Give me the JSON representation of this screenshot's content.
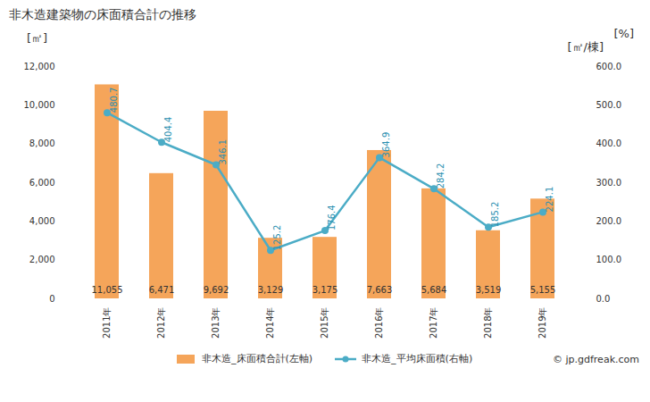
{
  "chart_data": {
    "type": "bar",
    "title": "非木造建築物の床面積合計の推移",
    "y_label": "[㎡]",
    "y2_label": "[㎡/棟]",
    "annotations": [
      "[%]"
    ],
    "caption": "© jp.gdfreak.com",
    "categories": [
      "2011年",
      "2012年",
      "2013年",
      "2014年",
      "2015年",
      "2016年",
      "2017年",
      "2018年",
      "2019年"
    ],
    "series": [
      {
        "name": "非木造_床面積合計(左軸)",
        "type": "bar",
        "color": "#f5a55a",
        "values": [
          11055,
          6471,
          9692,
          3129,
          3175,
          7663,
          5684,
          3519,
          5155
        ],
        "value_labels": [
          "11,055",
          "6,471",
          "9,692",
          "3,129",
          "3,175",
          "7,663",
          "5,684",
          "3,519",
          "5,155"
        ]
      },
      {
        "name": "非木造_平均床面積(右軸)",
        "type": "line",
        "axis": "y2",
        "color": "#4bacc6",
        "marker": "circle",
        "values": [
          480.7,
          404.4,
          346.1,
          125.2,
          176.4,
          364.9,
          284.2,
          185.2,
          224.1
        ]
      }
    ],
    "ylim": [
      0,
      12000
    ],
    "yticks": [
      0,
      {
        "value": 2000,
        "label": "2,000"
      },
      {
        "value": 4000,
        "label": "4,000"
      },
      {
        "value": 6000,
        "label": "6,000"
      },
      {
        "value": 8000,
        "label": "8,000"
      },
      {
        "value": 10000,
        "label": "10,000"
      },
      {
        "value": 12000,
        "label": "12,000"
      }
    ],
    "y2lim": [
      0,
      600
    ],
    "y2ticks": [
      {
        "value": 0,
        "label": "0.0"
      },
      {
        "value": 100,
        "label": "100.0"
      },
      {
        "value": 200,
        "label": "200.0"
      },
      {
        "value": 300,
        "label": "300.0"
      },
      {
        "value": 400,
        "label": "400.0"
      },
      {
        "value": 500,
        "label": "500.0"
      },
      {
        "value": 600,
        "label": "600.0"
      }
    ],
    "grid": false,
    "data_labels": true,
    "legend": "bottom"
  }
}
